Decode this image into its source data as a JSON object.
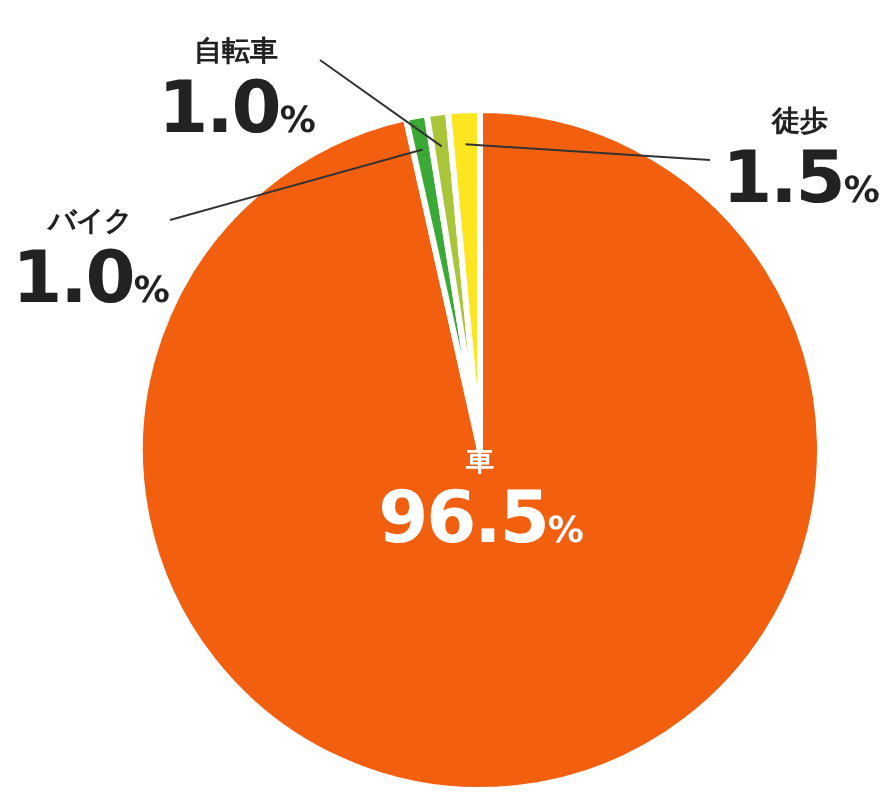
{
  "chart_data": {
    "type": "pie",
    "categories": [
      "車",
      "バイク",
      "自転車",
      "徒歩"
    ],
    "values": [
      96.5,
      1.0,
      1.0,
      1.5
    ],
    "value_labels": [
      "96.5%",
      "1.0%",
      "1.0%",
      "1.5%"
    ],
    "colors": [
      "#f25f0f",
      "#3aa935",
      "#a9c539",
      "#fde51f"
    ],
    "legend": false
  }
}
